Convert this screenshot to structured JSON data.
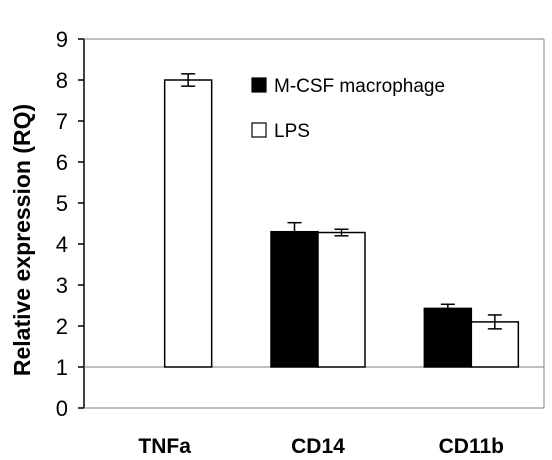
{
  "chart_data": {
    "type": "bar",
    "title": "",
    "xlabel": "",
    "ylabel": "Relative expression (RQ)",
    "ylim": [
      0,
      9
    ],
    "yticks": [
      0,
      1,
      2,
      3,
      4,
      5,
      6,
      7,
      8,
      9
    ],
    "baseline": 1,
    "grid": false,
    "legend_position": "top-right",
    "categories": [
      "TNFa",
      "CD14",
      "CD11b"
    ],
    "series": [
      {
        "name": "M-CSF macrophage",
        "color": "#000000",
        "values": [
          1.0,
          4.3,
          2.43
        ],
        "errors": [
          null,
          0.22,
          0.1
        ]
      },
      {
        "name": "LPS",
        "color": "#ffffff",
        "values": [
          8.0,
          4.28,
          2.1
        ],
        "errors": [
          0.15,
          0.08,
          0.17
        ]
      }
    ]
  }
}
